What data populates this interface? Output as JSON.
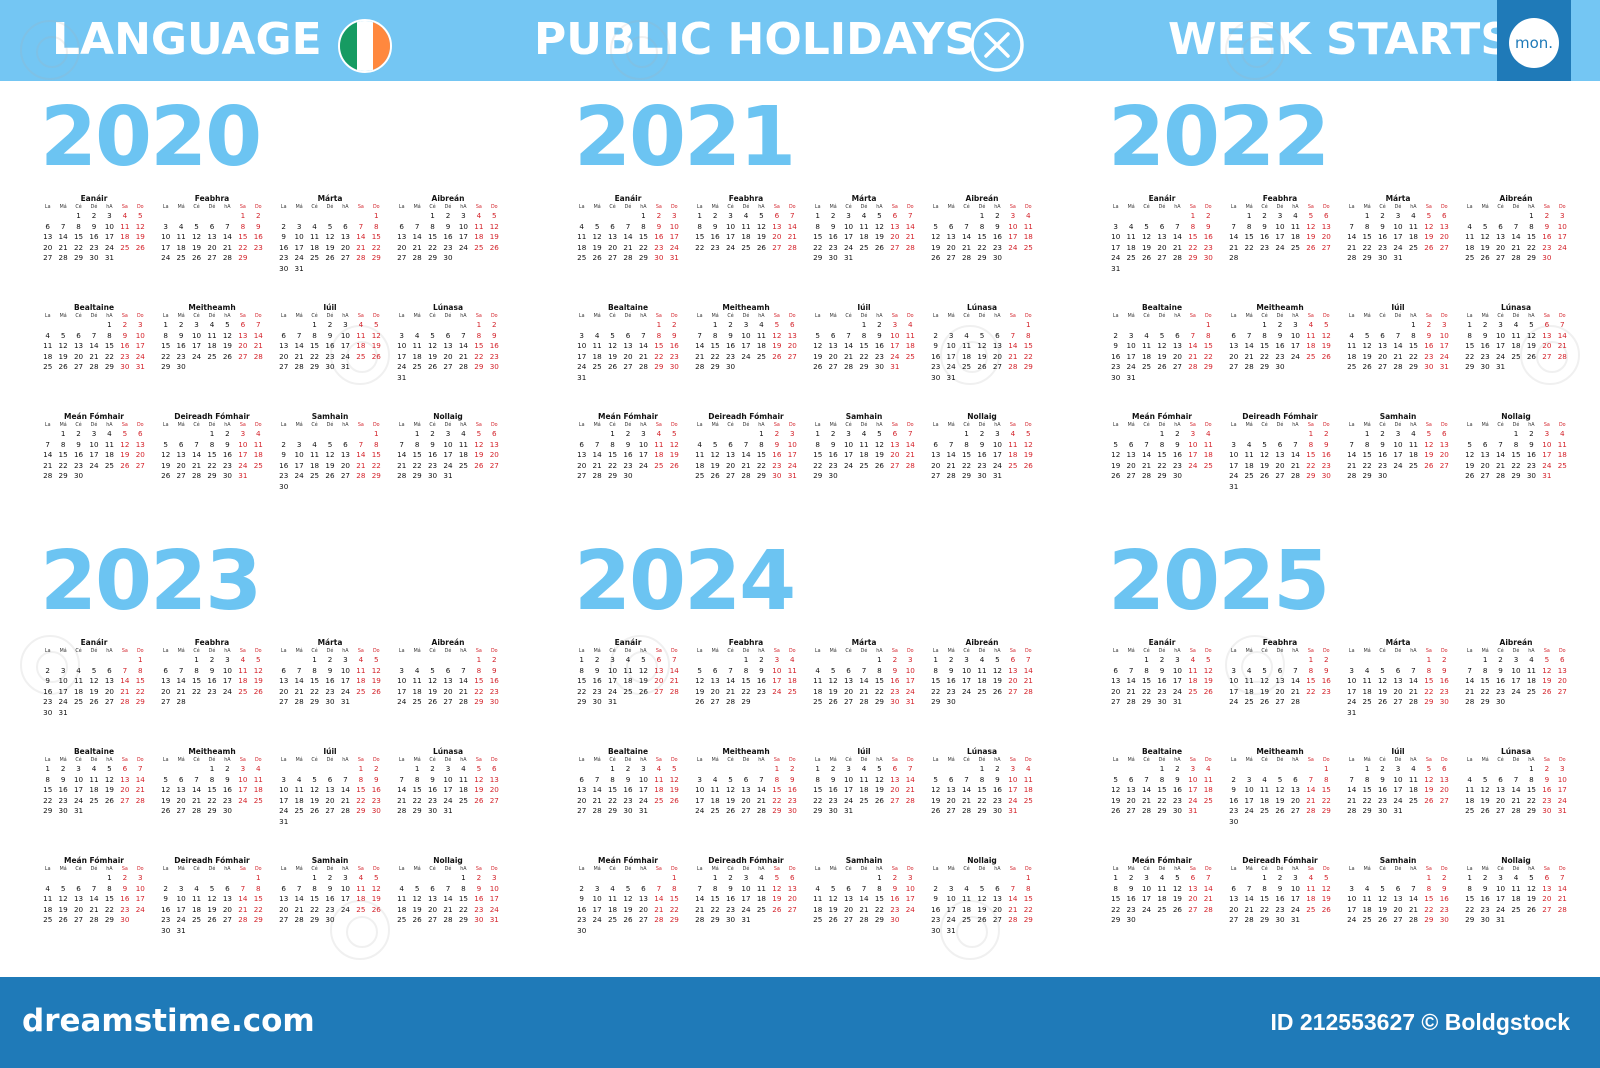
{
  "header": {
    "language_label": "LANGUAGE",
    "flag_colors": [
      "#169b62",
      "#ffffff",
      "#ff883e"
    ],
    "holidays_label": "PUBLIC HOLIDAYS",
    "holidays_icon": "crossed-circle-icon",
    "week_starts_label": "WEEK STARTS",
    "week_start_value": "mon."
  },
  "weekdays": [
    "La",
    "Má",
    "Cé",
    "Dé",
    "hA",
    "Sa",
    "Do"
  ],
  "months": [
    "Eanáir",
    "Feabhra",
    "Márta",
    "Aibreán",
    "Bealtaine",
    "Meitheamh",
    "Iúil",
    "Lúnasa",
    "Meán Fómhair",
    "Deireadh Fómhair",
    "Samhain",
    "Nollaig"
  ],
  "years": [
    "2020",
    "2021",
    "2022",
    "2023",
    "2024",
    "2025"
  ],
  "colors": {
    "accent": "#74c6f3",
    "year": "#6cc4f2",
    "weekend": "#d3222a",
    "footer": "#1f7ab8"
  },
  "footer": {
    "logo": "dreamstime.com",
    "id_text": "ID 212553627 © Boldgstock"
  }
}
